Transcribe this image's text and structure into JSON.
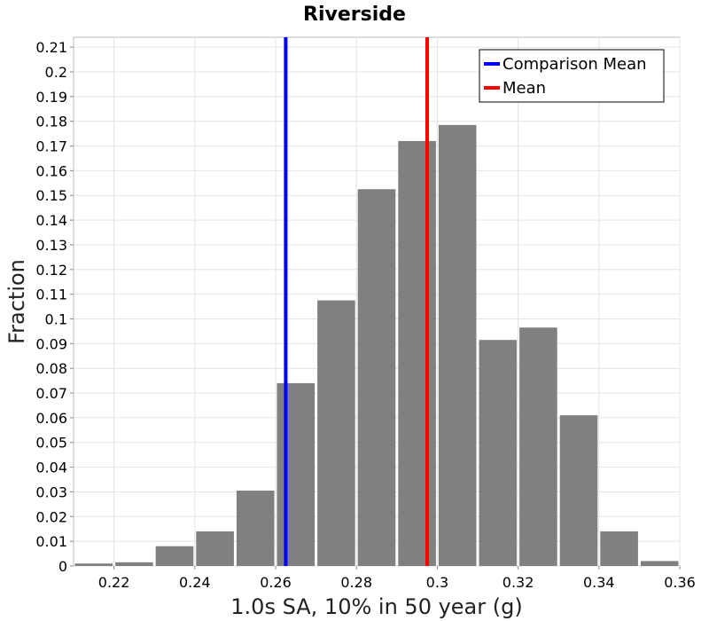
{
  "chart_data": {
    "type": "bar",
    "title": "Riverside",
    "xlabel": "1.0s SA, 10% in 50 year (g)",
    "ylabel": "Fraction",
    "xlim": [
      0.21,
      0.36
    ],
    "ylim": [
      0,
      0.214
    ],
    "grid": true,
    "legend": "top-right",
    "bin_width": 0.01,
    "bars": [
      {
        "x": 0.215,
        "value": 0.001
      },
      {
        "x": 0.225,
        "value": 0.0015
      },
      {
        "x": 0.235,
        "value": 0.008
      },
      {
        "x": 0.245,
        "value": 0.014
      },
      {
        "x": 0.255,
        "value": 0.0305
      },
      {
        "x": 0.265,
        "value": 0.074
      },
      {
        "x": 0.275,
        "value": 0.1075
      },
      {
        "x": 0.285,
        "value": 0.1525
      },
      {
        "x": 0.295,
        "value": 0.172
      },
      {
        "x": 0.305,
        "value": 0.1785
      },
      {
        "x": 0.315,
        "value": 0.0915
      },
      {
        "x": 0.325,
        "value": 0.0965
      },
      {
        "x": 0.335,
        "value": 0.061
      },
      {
        "x": 0.345,
        "value": 0.014
      },
      {
        "x": 0.355,
        "value": 0.002
      }
    ],
    "x_ticks": [
      {
        "value": 0.22,
        "label": "0.22"
      },
      {
        "value": 0.24,
        "label": "0.24"
      },
      {
        "value": 0.26,
        "label": "0.26"
      },
      {
        "value": 0.28,
        "label": "0.28"
      },
      {
        "value": 0.3,
        "label": "0.3"
      },
      {
        "value": 0.32,
        "label": "0.32"
      },
      {
        "value": 0.34,
        "label": "0.34"
      },
      {
        "value": 0.36,
        "label": "0.36"
      }
    ],
    "y_ticks": [
      {
        "value": 0,
        "label": "0"
      },
      {
        "value": 0.01,
        "label": "0.01"
      },
      {
        "value": 0.02,
        "label": "0.02"
      },
      {
        "value": 0.03,
        "label": "0.03"
      },
      {
        "value": 0.04,
        "label": "0.04"
      },
      {
        "value": 0.05,
        "label": "0.05"
      },
      {
        "value": 0.06,
        "label": "0.06"
      },
      {
        "value": 0.07,
        "label": "0.07"
      },
      {
        "value": 0.08,
        "label": "0.08"
      },
      {
        "value": 0.09,
        "label": "0.09"
      },
      {
        "value": 0.1,
        "label": "0.1"
      },
      {
        "value": 0.11,
        "label": "0.11"
      },
      {
        "value": 0.12,
        "label": "0.12"
      },
      {
        "value": 0.13,
        "label": "0.13"
      },
      {
        "value": 0.14,
        "label": "0.14"
      },
      {
        "value": 0.15,
        "label": "0.15"
      },
      {
        "value": 0.16,
        "label": "0.16"
      },
      {
        "value": 0.17,
        "label": "0.17"
      },
      {
        "value": 0.18,
        "label": "0.18"
      },
      {
        "value": 0.19,
        "label": "0.19"
      },
      {
        "value": 0.2,
        "label": "0.2"
      },
      {
        "value": 0.21,
        "label": "0.21"
      }
    ],
    "vertical_lines": [
      {
        "name": "Comparison Mean",
        "x": 0.2625,
        "color": "#0000ff"
      },
      {
        "name": "Mean",
        "x": 0.2975,
        "color": "#ff0000"
      }
    ],
    "bar_color": "#808080"
  }
}
